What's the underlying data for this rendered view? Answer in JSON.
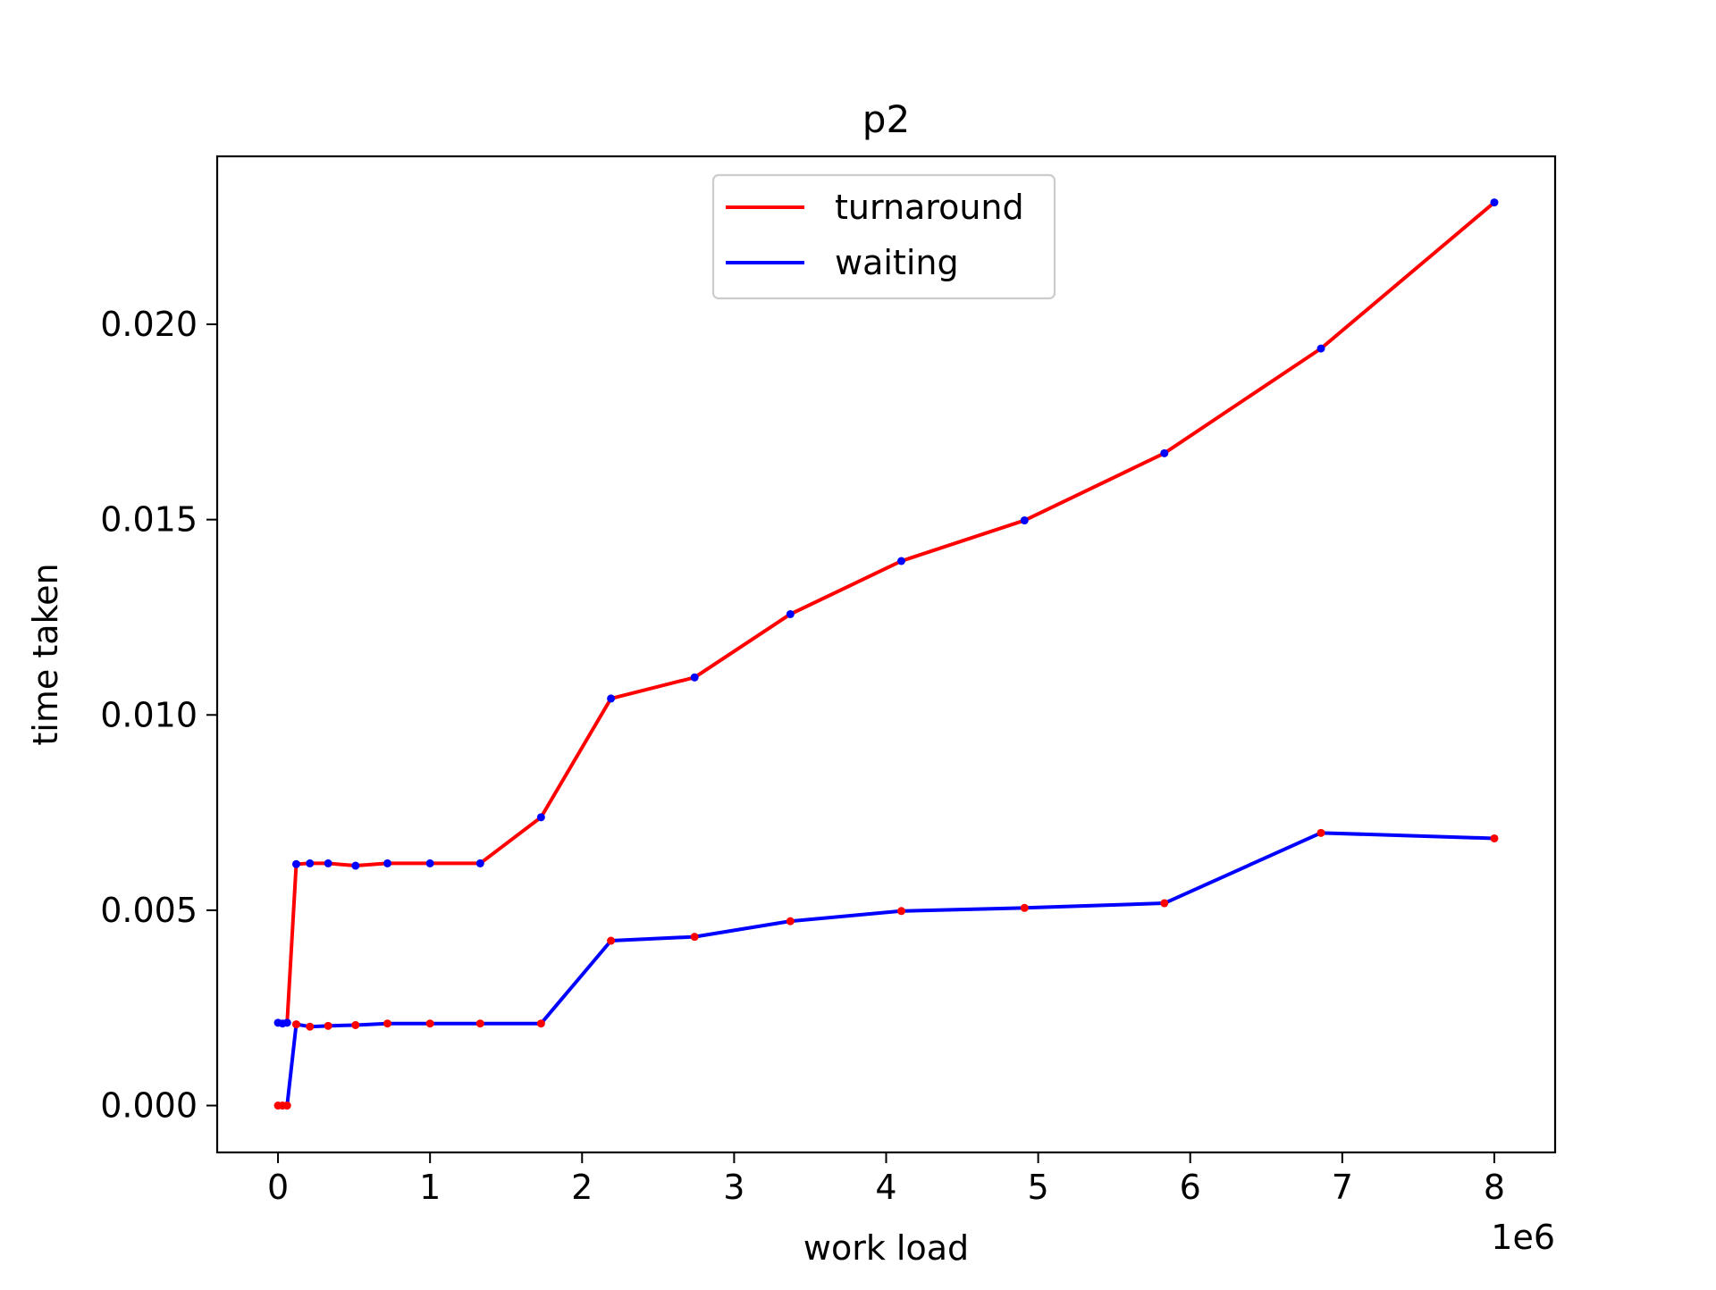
{
  "chart_data": {
    "type": "line",
    "title": "p2",
    "xlabel": "work load",
    "ylabel": "time taken",
    "x_offset_label": "1e6",
    "xlim": [
      -0.4,
      8.4
    ],
    "ylim": [
      -0.0012,
      0.0243
    ],
    "x_ticks": [
      0,
      1,
      2,
      3,
      4,
      5,
      6,
      7,
      8
    ],
    "x_tick_labels": [
      "0",
      "1",
      "2",
      "3",
      "4",
      "5",
      "6",
      "7",
      "8"
    ],
    "y_ticks": [
      0.0,
      0.005,
      0.01,
      0.015,
      0.02
    ],
    "y_tick_labels": [
      "0.000",
      "0.005",
      "0.010",
      "0.015",
      "0.020"
    ],
    "legend_position": "upper-center",
    "grid": false,
    "series": [
      {
        "name": "turnaround",
        "color": "#ff0000",
        "marker_color": "#0000ff",
        "x": [
          0.0,
          0.03,
          0.06,
          0.12,
          0.21,
          0.33,
          0.51,
          0.72,
          1.0,
          1.33,
          1.73,
          2.19,
          2.74,
          3.37,
          4.1,
          4.91,
          5.83,
          6.86,
          8.0
        ],
        "y": [
          0.00212,
          0.0021,
          0.00212,
          0.00618,
          0.0062,
          0.0062,
          0.00614,
          0.0062,
          0.0062,
          0.0062,
          0.00738,
          0.01042,
          0.01096,
          0.01258,
          0.01394,
          0.01498,
          0.0167,
          0.01938,
          0.02312
        ]
      },
      {
        "name": "waiting",
        "color": "#0000ff",
        "marker_color": "#ff0000",
        "x": [
          0.0,
          0.03,
          0.06,
          0.12,
          0.21,
          0.33,
          0.51,
          0.72,
          1.0,
          1.33,
          1.73,
          2.19,
          2.74,
          3.37,
          4.1,
          4.91,
          5.83,
          6.86,
          8.0
        ],
        "y": [
          0.0,
          0.0,
          0.0,
          0.00208,
          0.00202,
          0.00204,
          0.00206,
          0.0021,
          0.0021,
          0.0021,
          0.0021,
          0.00422,
          0.00432,
          0.00472,
          0.00498,
          0.00506,
          0.00518,
          0.00698,
          0.00684
        ]
      }
    ]
  }
}
